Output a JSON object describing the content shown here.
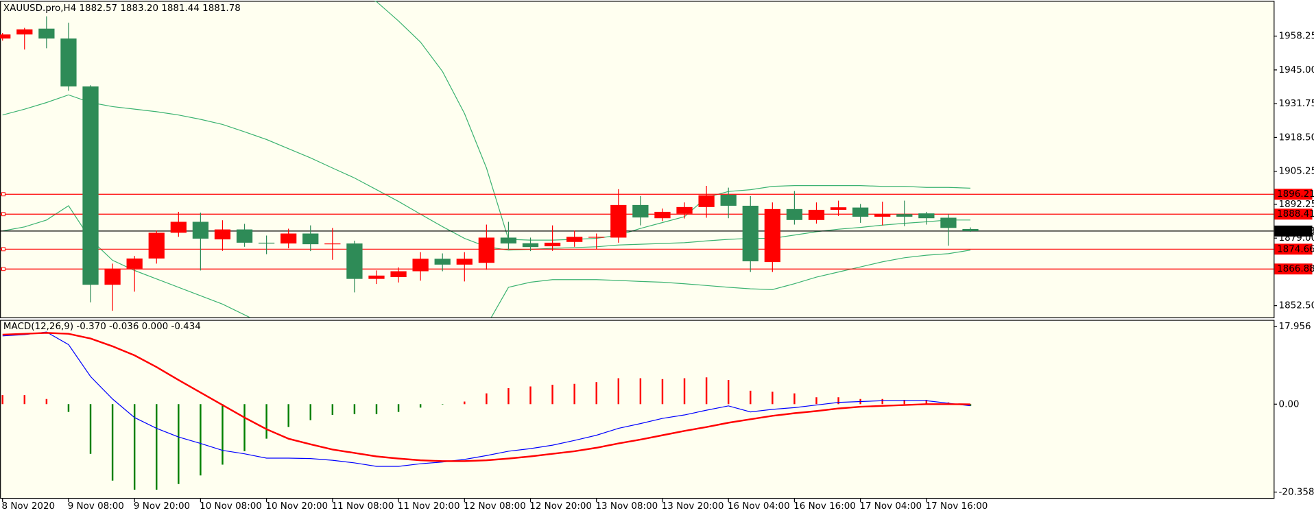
{
  "chart_data": [
    {
      "type": "candlestick",
      "title": "XAUUSD.pro,H4  1882.57 1883.20 1881.44 1881.78",
      "categories": [
        "8 Nov 2020",
        null,
        null,
        "9 Nov 08:00",
        null,
        null,
        "9 Nov 20:00",
        null,
        null,
        "10 Nov 08:00",
        null,
        null,
        "10 Nov 20:00",
        null,
        null,
        "11 Nov 08:00",
        null,
        null,
        "11 Nov 20:00",
        null,
        null,
        "12 Nov 08:00",
        null,
        null,
        "12 Nov 20:00",
        null,
        null,
        "13 Nov 08:00",
        null,
        null,
        "13 Nov 20:00",
        null,
        null,
        "16 Nov 04:00",
        null,
        null,
        "16 Nov 16:00",
        null,
        null,
        "17 Nov 04:00",
        null,
        null,
        "17 Nov 16:00",
        null,
        null
      ],
      "open": [
        1957.3,
        1958.9,
        1961.2,
        1957.3,
        1938.5,
        1860.7,
        1867,
        1871,
        1881.1,
        1885.4,
        1878.5,
        1882.4,
        1877.2,
        1876.9,
        1880.8,
        1876.6,
        1876.9,
        1863,
        1863.7,
        1866,
        1870.9,
        1868.6,
        1869.3,
        1879.2,
        1877,
        1875.8,
        1877.5,
        1879.2,
        1879.2,
        1892,
        1886.8,
        1888.6,
        1891.2,
        1896,
        1891.7,
        1869.6,
        1890.4,
        1886.1,
        1890.1,
        1891,
        1887.4,
        1888.4,
        1888.7,
        1887,
        1882.57
      ],
      "high": [
        1959.5,
        1961.5,
        1966,
        1963.5,
        1939,
        1869,
        1872,
        1882,
        1889.3,
        1889,
        1886,
        1884.6,
        1880,
        1882.7,
        1884,
        1883,
        1878,
        1866.3,
        1867.5,
        1873.5,
        1873,
        1873.5,
        1884.3,
        1885.4,
        1879.2,
        1884,
        1882,
        1880.8,
        1898.2,
        1895.5,
        1890.6,
        1893,
        1899.5,
        1898.8,
        1895.5,
        1893,
        1897.5,
        1893,
        1893.7,
        1892.4,
        1893.3,
        1893.7,
        1889.3,
        1888.4,
        1883.2
      ],
      "low": [
        1956.5,
        1953,
        1953.5,
        1936.8,
        1853.8,
        1850.5,
        1858,
        1869,
        1879.5,
        1866.3,
        1874,
        1875.6,
        1872.7,
        1875,
        1873.9,
        1870.5,
        1857.7,
        1861,
        1861.6,
        1862.3,
        1866,
        1862,
        1866.6,
        1874.6,
        1873.9,
        1874,
        1875.6,
        1874.6,
        1877.2,
        1884,
        1885.7,
        1886.7,
        1887,
        1886.8,
        1865.7,
        1865.7,
        1884.3,
        1884.7,
        1887.7,
        1885,
        1884,
        1883.7,
        1884.3,
        1876,
        1881.44
      ],
      "close": [
        1958.9,
        1960.9,
        1957.3,
        1938.5,
        1860.7,
        1867,
        1871,
        1881.1,
        1885.4,
        1878.8,
        1882.4,
        1877.2,
        1876.9,
        1880.8,
        1876.6,
        1876.9,
        1863,
        1864.3,
        1866,
        1870.9,
        1868.6,
        1870.9,
        1879.2,
        1876.9,
        1875.5,
        1877.2,
        1879.5,
        1879.5,
        1892,
        1887.1,
        1889.3,
        1891.2,
        1895.8,
        1891.7,
        1869.9,
        1890.4,
        1886.1,
        1890.1,
        1891.1,
        1887.4,
        1888.4,
        1887.4,
        1886.8,
        1883,
        1881.78
      ],
      "up_color": "#ff0000",
      "down_color": "#2e8b57",
      "bands": {
        "color": "#3cb371",
        "upper": [
          1972.7,
          1975.7,
          1978.4,
          1978.7,
          1985.9,
          1990.9,
          1992.9,
          1994.2,
          1994.8,
          1994.8,
          1994.2,
          1992.5,
          1990.9,
          1987.6,
          1984.3,
          1980.0,
          1975.4,
          1971.8,
          1964.2,
          1955.9,
          1944.4,
          1927.9,
          1906.5,
          1878.5,
          1878.2,
          1878.2,
          1878.5,
          1878.9,
          1880.1,
          1882.8,
          1885.1,
          1887.4,
          1895.0,
          1897.3,
          1898.0,
          1899.3,
          1899.6,
          1899.6,
          1899.6,
          1899.6,
          1899.3,
          1899.3,
          1898.9,
          1898.9,
          1898.6
        ],
        "middle": [
          1927.3,
          1929.6,
          1932.2,
          1935.2,
          1932.2,
          1930.6,
          1929.6,
          1928.6,
          1927.3,
          1925.6,
          1923.6,
          1920.7,
          1917.7,
          1914.1,
          1910.5,
          1906.5,
          1902.6,
          1898.0,
          1893.4,
          1888.4,
          1883.5,
          1878.9,
          1875.6,
          1874.3,
          1874.6,
          1875.0,
          1875.3,
          1875.6,
          1876.3,
          1876.6,
          1876.9,
          1877.2,
          1877.9,
          1878.5,
          1878.9,
          1878.9,
          1880.2,
          1881.5,
          1882.5,
          1883.2,
          1884.1,
          1884.8,
          1885.4,
          1886.1,
          1886.1
        ],
        "lower": [
          1881.8,
          1883.4,
          1886.1,
          1891.7,
          1878.5,
          1870.3,
          1866.3,
          1863.0,
          1859.7,
          1856.4,
          1853.1,
          1848.9,
          1844.6,
          1840.6,
          1836.7,
          1833.0,
          1829.7,
          1827.4,
          1825.5,
          1824.8,
          1822.5,
          1829.7,
          1844.6,
          1859.7,
          1861.7,
          1862.7,
          1862.7,
          1862.7,
          1862.4,
          1862.0,
          1861.7,
          1861.1,
          1860.4,
          1859.7,
          1859.1,
          1858.8,
          1861.1,
          1863.7,
          1865.7,
          1867.7,
          1869.7,
          1871.3,
          1872.3,
          1872.9,
          1874.3
        ]
      },
      "levels": [
        1896.21,
        1888.41,
        1874.66,
        1866.88
      ],
      "level_color": "#ff0000",
      "last_price": 1881.78,
      "ylim": [
        1847.9,
        1972.1
      ],
      "yticks": [
        1958.25,
        {
          "value": 1945,
          "label": "1945.00"
        },
        1931.75,
        {
          "value": 1918.5,
          "label": "1918.50"
        },
        1905.25,
        1892.25,
        {
          "value": 1879,
          "label": "1879.00"
        },
        {
          "value": 1852.5,
          "label": "1852.50"
        }
      ]
    },
    {
      "type": "macd",
      "title": "MACD(12,26,9) -0.370 -0.036 0.000 -0.434",
      "histogram": {
        "up_color": "#ff0000",
        "down_color": "#008000",
        "values": [
          2.1,
          2.1,
          1.2,
          -1.8,
          -11.5,
          -17.7,
          -19.8,
          -19.8,
          -18.5,
          -16.5,
          -14.0,
          -10.9,
          -8.0,
          -5.3,
          -3.7,
          -2.5,
          -2.3,
          -2.3,
          -1.8,
          -0.8,
          -0.1,
          0.6,
          2.5,
          3.7,
          4.1,
          4.5,
          4.7,
          5.1,
          6.0,
          6.0,
          5.8,
          6.0,
          6.2,
          5.6,
          3.1,
          2.9,
          2.5,
          1.6,
          1.6,
          1.2,
          1.2,
          1.0,
          1.0,
          0.4,
          -0.4
        ]
      },
      "series": [
        {
          "color": "#0000ff",
          "width": 1,
          "values": [
            15.8,
            16.1,
            16.7,
            13.8,
            6.4,
            1.2,
            -3.1,
            -5.6,
            -7.6,
            -9.1,
            -10.7,
            -11.5,
            -12.5,
            -12.5,
            -12.6,
            -13.0,
            -13.6,
            -14.4,
            -14.4,
            -13.8,
            -13.4,
            -12.8,
            -11.9,
            -10.9,
            -10.3,
            -9.5,
            -8.4,
            -7.2,
            -5.6,
            -4.5,
            -3.3,
            -2.5,
            -1.4,
            -0.4,
            -1.8,
            -1.2,
            -0.8,
            -0.2,
            0.4,
            0.6,
            0.8,
            0.8,
            0.8,
            0.2,
            -0.37
          ]
        },
        {
          "color": "#ff0000",
          "width": 2,
          "values": [
            16.1,
            16.3,
            16.5,
            16.3,
            15.2,
            13.4,
            11.3,
            8.6,
            5.6,
            2.7,
            -0.2,
            -3.1,
            -5.8,
            -8.0,
            -9.3,
            -10.5,
            -11.3,
            -12.1,
            -12.6,
            -13.0,
            -13.2,
            -13.2,
            -13.0,
            -12.6,
            -12.1,
            -11.5,
            -10.9,
            -10.1,
            -9.1,
            -8.2,
            -7.2,
            -6.2,
            -5.3,
            -4.3,
            -3.5,
            -2.7,
            -2.1,
            -1.6,
            -1.0,
            -0.6,
            -0.4,
            -0.2,
            0,
            0,
            -0.04
          ]
        }
      ],
      "ylim": [
        -21.9,
        19.32
      ],
      "yticks": [
        17.956,
        {
          "value": 0,
          "label": "0.00"
        },
        -20.358
      ]
    }
  ]
}
